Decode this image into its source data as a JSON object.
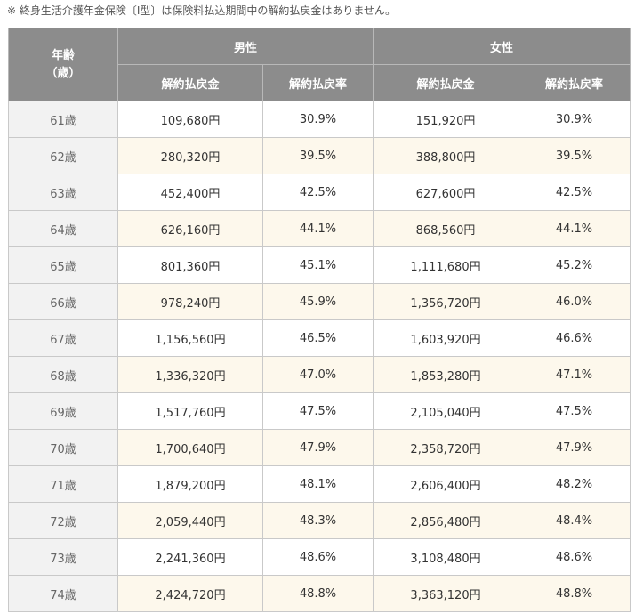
{
  "note": "※ 終身生活介護年金保険〔Ⅰ型〕は保険料払込期間中の解約払戻金はありません。",
  "table": {
    "age_header_line1": "年齢",
    "age_header_line2": "（歳）",
    "male_header": "男性",
    "female_header": "女性",
    "amount_header": "解約払戻金",
    "rate_header": "解約払戻率",
    "rows": [
      {
        "age": "61歳",
        "male_amount": "109,680円",
        "male_rate": "30.9%",
        "female_amount": "151,920円",
        "female_rate": "30.9%"
      },
      {
        "age": "62歳",
        "male_amount": "280,320円",
        "male_rate": "39.5%",
        "female_amount": "388,800円",
        "female_rate": "39.5%"
      },
      {
        "age": "63歳",
        "male_amount": "452,400円",
        "male_rate": "42.5%",
        "female_amount": "627,600円",
        "female_rate": "42.5%"
      },
      {
        "age": "64歳",
        "male_amount": "626,160円",
        "male_rate": "44.1%",
        "female_amount": "868,560円",
        "female_rate": "44.1%"
      },
      {
        "age": "65歳",
        "male_amount": "801,360円",
        "male_rate": "45.1%",
        "female_amount": "1,111,680円",
        "female_rate": "45.2%"
      },
      {
        "age": "66歳",
        "male_amount": "978,240円",
        "male_rate": "45.9%",
        "female_amount": "1,356,720円",
        "female_rate": "46.0%"
      },
      {
        "age": "67歳",
        "male_amount": "1,156,560円",
        "male_rate": "46.5%",
        "female_amount": "1,603,920円",
        "female_rate": "46.6%"
      },
      {
        "age": "68歳",
        "male_amount": "1,336,320円",
        "male_rate": "47.0%",
        "female_amount": "1,853,280円",
        "female_rate": "47.1%"
      },
      {
        "age": "69歳",
        "male_amount": "1,517,760円",
        "male_rate": "47.5%",
        "female_amount": "2,105,040円",
        "female_rate": "47.5%"
      },
      {
        "age": "70歳",
        "male_amount": "1,700,640円",
        "male_rate": "47.9%",
        "female_amount": "2,358,720円",
        "female_rate": "47.9%"
      },
      {
        "age": "71歳",
        "male_amount": "1,879,200円",
        "male_rate": "48.1%",
        "female_amount": "2,606,400円",
        "female_rate": "48.2%"
      },
      {
        "age": "72歳",
        "male_amount": "2,059,440円",
        "male_rate": "48.3%",
        "female_amount": "2,856,480円",
        "female_rate": "48.4%"
      },
      {
        "age": "73歳",
        "male_amount": "2,241,360円",
        "male_rate": "48.6%",
        "female_amount": "3,108,480円",
        "female_rate": "48.6%"
      },
      {
        "age": "74歳",
        "male_amount": "2,424,720円",
        "male_rate": "48.8%",
        "female_amount": "3,363,120円",
        "female_rate": "48.8%"
      }
    ]
  }
}
